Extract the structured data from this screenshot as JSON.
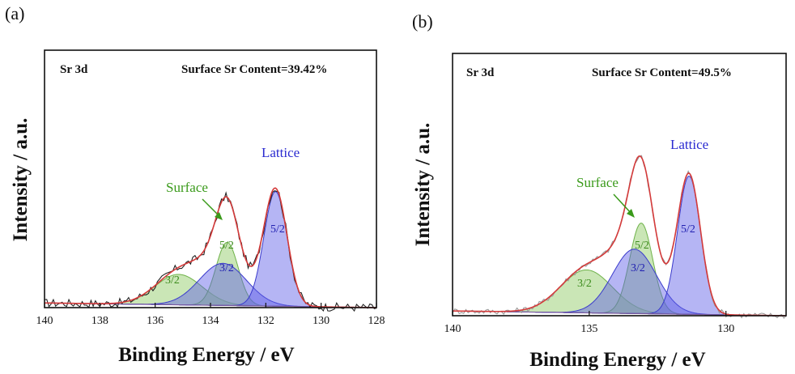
{
  "chart_data": [
    {
      "panel": "(a)",
      "type": "line",
      "title": "Sr 3d",
      "subtitle": "Surface Sr Content=39.42%",
      "xlabel": "Binding Energy / eV",
      "ylabel": "Intensity / a.u.",
      "xlim": [
        140,
        128
      ],
      "ylim": [
        0,
        1.1
      ],
      "xticks": [
        140,
        138,
        136,
        134,
        132,
        130,
        128
      ],
      "xtick_labels": [
        "140",
        "138",
        "136",
        "134",
        "132",
        "130",
        "128"
      ],
      "annotations": {
        "surface": "Surface",
        "lattice": "Lattice"
      },
      "peak_labels": [
        "3/2",
        "5/2",
        "3/2",
        "5/2"
      ],
      "background": {
        "left": 0.02,
        "right": 0.0
      },
      "components": [
        {
          "name": "Surface 3d3/2",
          "center": 135.15,
          "amp": 0.13,
          "sigma": 0.85,
          "color": "green"
        },
        {
          "name": "Surface 3d5/2",
          "center": 133.4,
          "amp": 0.27,
          "sigma": 0.4,
          "color": "green"
        },
        {
          "name": "Lattice 3d3/2",
          "center": 133.55,
          "amp": 0.18,
          "sigma": 0.85,
          "color": "blue"
        },
        {
          "name": "Lattice 3d5/2",
          "center": 131.65,
          "amp": 0.49,
          "sigma": 0.42,
          "color": "blue"
        }
      ],
      "noise": 0.018,
      "raw_color": "#222222"
    },
    {
      "panel": "(b)",
      "type": "line",
      "title": "Sr 3d",
      "subtitle": "Surface Sr Content=49.5%",
      "xlabel": "Binding Energy / eV",
      "ylabel": "Intensity / a.u.",
      "xlim": [
        140,
        127.8
      ],
      "ylim": [
        0,
        1.1
      ],
      "xticks": [
        140,
        135,
        130
      ],
      "xtick_labels": [
        "140",
        "135",
        "130"
      ],
      "annotations": {
        "surface": "Surface",
        "lattice": "Lattice"
      },
      "peak_labels": [
        "3/2",
        "5/2",
        "3/2",
        "5/2"
      ],
      "background": {
        "left": 0.02,
        "right": 0.0
      },
      "components": [
        {
          "name": "Surface 3d3/2",
          "center": 135.1,
          "amp": 0.18,
          "sigma": 0.95,
          "color": "green"
        },
        {
          "name": "Surface 3d5/2",
          "center": 133.1,
          "amp": 0.38,
          "sigma": 0.42,
          "color": "green"
        },
        {
          "name": "Lattice 3d3/2",
          "center": 133.35,
          "amp": 0.27,
          "sigma": 0.8,
          "color": "blue"
        },
        {
          "name": "Lattice 3d5/2",
          "center": 131.35,
          "amp": 0.58,
          "sigma": 0.42,
          "color": "blue"
        }
      ],
      "noise": 0.012,
      "raw_color": "#999999"
    }
  ],
  "colors": {
    "green_fill": "#9fd27a",
    "green_stroke": "#6fb24a",
    "blue_fill": "#5a5ae6",
    "blue_stroke": "#3a3acc",
    "fit": "#d43a3a",
    "annotation_green": "#3a9a1a",
    "annotation_blue": "#2a2ad0"
  }
}
